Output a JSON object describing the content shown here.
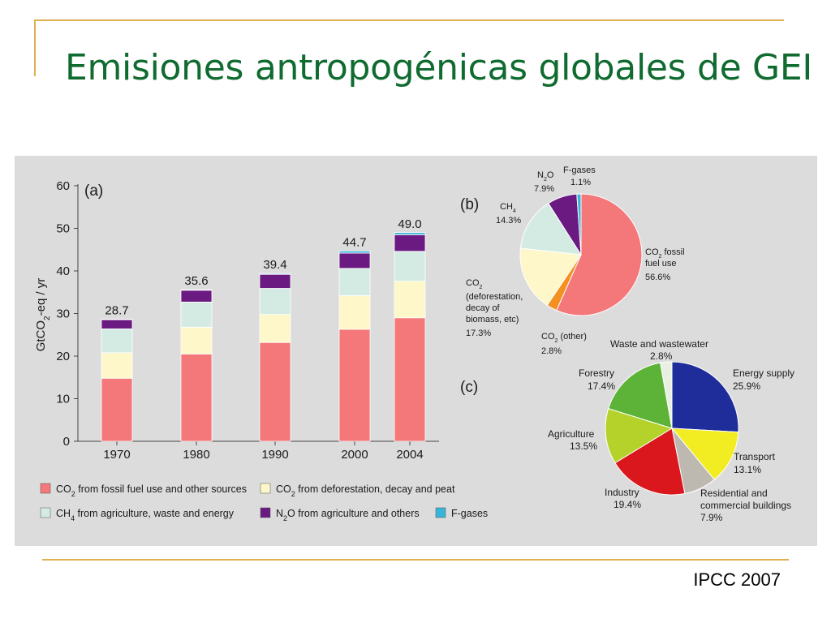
{
  "slide": {
    "title": "Emisiones antropogénicas globales de GEI",
    "source": "IPCC 2007"
  },
  "chart_data": [
    {
      "type": "bar",
      "panel_label": "(a)",
      "ylabel": "GtCO2-eq / yr",
      "ylim": [
        0,
        60
      ],
      "yticks": [
        0,
        10,
        20,
        30,
        40,
        50,
        60
      ],
      "categories": [
        "1970",
        "1980",
        "1990",
        "2000",
        "2004"
      ],
      "totals": [
        "28.7",
        "35.6",
        "39.4",
        "44.7",
        "49.0"
      ],
      "series": [
        {
          "name": "CO2 from fossil fuel use and other sources",
          "color": "#f4777a",
          "values": [
            14.8,
            20.5,
            23.2,
            26.3,
            29.0
          ]
        },
        {
          "name": "CO2 from deforestation, decay and peat",
          "color": "#fdf7c9",
          "values": [
            6.0,
            6.3,
            6.6,
            7.9,
            8.6
          ]
        },
        {
          "name": "CH4 from agriculture, waste and energy",
          "color": "#d4ebe3",
          "values": [
            5.6,
            5.9,
            6.1,
            6.4,
            7.0
          ]
        },
        {
          "name": "N2O from agriculture and others",
          "color": "#6a1a80",
          "values": [
            2.2,
            2.8,
            3.3,
            3.6,
            3.9
          ]
        },
        {
          "name": "F-gases",
          "color": "#3ab4d8",
          "values": [
            0.1,
            0.1,
            0.2,
            0.5,
            0.5
          ]
        }
      ]
    },
    {
      "type": "pie",
      "panel_label": "(b)",
      "slices": [
        {
          "label": "CO2 fossil fuel use",
          "value": 56.6,
          "value_label": "56.6%",
          "color": "#f4777a"
        },
        {
          "label": "CO2 (other)",
          "value": 2.8,
          "value_label": "2.8%",
          "color": "#f39020"
        },
        {
          "label": "CO2 (deforestation, decay of biomass, etc)",
          "value": 17.3,
          "value_label": "17.3%",
          "color": "#fdf7c9"
        },
        {
          "label": "CH4",
          "value": 14.3,
          "value_label": "14.3%",
          "color": "#d4ebe3"
        },
        {
          "label": "N2O",
          "value": 7.9,
          "value_label": "7.9%",
          "color": "#6a1a80"
        },
        {
          "label": "F-gases",
          "value": 1.1,
          "value_label": "1.1%",
          "color": "#3ab4d8"
        }
      ]
    },
    {
      "type": "pie",
      "panel_label": "(c)",
      "slices": [
        {
          "label": "Energy supply",
          "value": 25.9,
          "value_label": "25.9%",
          "color": "#1e2d99"
        },
        {
          "label": "Transport",
          "value": 13.1,
          "value_label": "13.1%",
          "color": "#f2ec22"
        },
        {
          "label": "Residential and commercial buildings",
          "value": 7.9,
          "value_label": "7.9%",
          "color": "#bdb8b0"
        },
        {
          "label": "Industry",
          "value": 19.4,
          "value_label": "19.4%",
          "color": "#d9171c"
        },
        {
          "label": "Agriculture",
          "value": 13.5,
          "value_label": "13.5%",
          "color": "#b5d22a"
        },
        {
          "label": "Forestry",
          "value": 17.4,
          "value_label": "17.4%",
          "color": "#5cb338"
        },
        {
          "label": "Waste and wastewater",
          "value": 2.8,
          "value_label": "2.8%",
          "color": "#e8f0e4"
        }
      ]
    }
  ]
}
